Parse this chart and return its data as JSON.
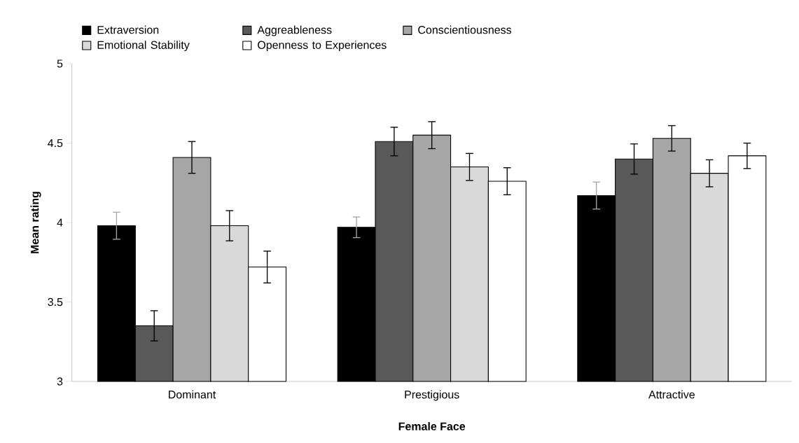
{
  "chart_data": {
    "type": "bar",
    "xlabel": "Female Face",
    "ylabel": "Mean rating",
    "categories": [
      "Dominant",
      "Prestigious",
      "Attractive"
    ],
    "series": [
      {
        "name": "Extraversion",
        "color": "#000000",
        "values": [
          3.98,
          3.97,
          4.17
        ],
        "errors": [
          0.085,
          0.065,
          0.085
        ]
      },
      {
        "name": "Aggreableness",
        "color": "#595959",
        "values": [
          3.35,
          4.51,
          4.4
        ],
        "errors": [
          0.095,
          0.09,
          0.095
        ]
      },
      {
        "name": "Conscientiousness",
        "color": "#a6a6a6",
        "values": [
          4.41,
          4.55,
          4.53
        ],
        "errors": [
          0.1,
          0.085,
          0.08
        ]
      },
      {
        "name": "Emotional Stability",
        "color": "#d9d9d9",
        "values": [
          3.98,
          4.35,
          4.31
        ],
        "errors": [
          0.095,
          0.085,
          0.085
        ]
      },
      {
        "name": "Openness to Experiences",
        "color": "#ffffff",
        "values": [
          3.72,
          4.26,
          4.42
        ],
        "errors": [
          0.1,
          0.085,
          0.08
        ]
      }
    ],
    "ylim": [
      3,
      5
    ],
    "yticks": [
      3,
      3.5,
      4,
      4.5,
      5
    ],
    "grid": false,
    "legend": "top"
  }
}
